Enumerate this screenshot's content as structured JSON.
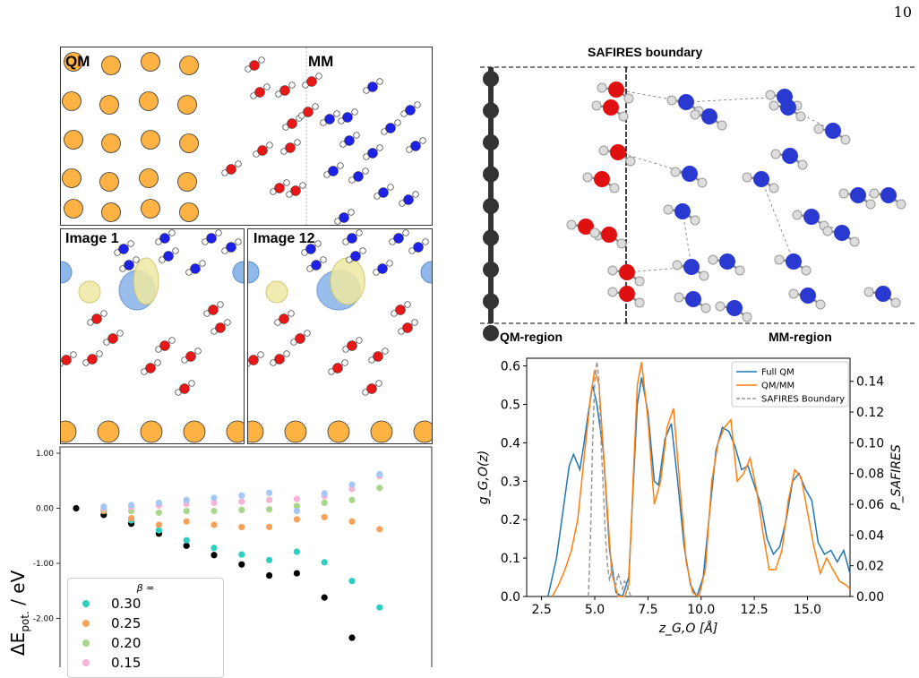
{
  "page_number": "10",
  "fig_a": {
    "label_qm": "QM",
    "label_mm": "MM"
  },
  "fig_b": {
    "image_a": "Image 1",
    "image_b": "Image 12"
  },
  "fig_c": {
    "ylabel": "ΔE",
    "ylabel_sub": "pot.",
    "ylabel_unit": "/ eV",
    "legend_title": "β =",
    "legend": [
      {
        "label": "0.30",
        "color": "#2ecfc0"
      },
      {
        "label": "0.25",
        "color": "#f7a25a"
      },
      {
        "label": "0.20",
        "color": "#a9d68a"
      },
      {
        "label": "0.15",
        "color": "#f5b3d6"
      }
    ]
  },
  "fig_d": {
    "title": "SAFIRES boundary",
    "left_label": "QM-region",
    "right_label": "MM-region"
  },
  "chart_data": [
    {
      "type": "scatter",
      "title": "",
      "xlabel": "",
      "ylabel": "ΔE_pot. / eV",
      "ylim": [
        -2.6,
        1.0
      ],
      "yticks": [
        1.0,
        0.0,
        -1.0,
        -2.0
      ],
      "ytick_labels": [
        "1.00",
        "0.00",
        "-1.00",
        "-2.00"
      ],
      "x": [
        1,
        2,
        3,
        4,
        5,
        6,
        7,
        8,
        9,
        10,
        11,
        12,
        13
      ],
      "series": [
        {
          "name": "",
          "color": "#000000",
          "values": [
            0.0,
            -0.12,
            -0.28,
            -0.46,
            -0.68,
            -0.85,
            -1.02,
            -1.22,
            -1.18,
            -1.62,
            -2.35,
            null,
            null
          ]
        },
        {
          "name": "0.30",
          "color": "#2ecfc0",
          "values": [
            null,
            -0.04,
            -0.22,
            -0.4,
            -0.58,
            -0.72,
            -0.84,
            -0.94,
            -0.79,
            -0.98,
            -1.32,
            -1.8,
            null
          ]
        },
        {
          "name": "0.25",
          "color": "#f7a25a",
          "values": [
            null,
            -0.05,
            -0.18,
            -0.3,
            -0.24,
            -0.3,
            -0.34,
            -0.34,
            -0.2,
            -0.16,
            -0.24,
            -0.38,
            null
          ]
        },
        {
          "name": "0.20",
          "color": "#a9d68a",
          "values": [
            null,
            -0.02,
            -0.05,
            -0.08,
            -0.05,
            -0.05,
            -0.03,
            -0.02,
            0.04,
            0.1,
            0.15,
            0.37,
            null
          ]
        },
        {
          "name": "0.15",
          "color": "#f5b3d6",
          "values": [
            null,
            0.0,
            0.02,
            0.05,
            0.08,
            0.1,
            0.12,
            0.15,
            0.17,
            0.22,
            0.35,
            0.58,
            null
          ]
        },
        {
          "name": "",
          "color": "#a4c8f5",
          "values": [
            null,
            0.03,
            0.06,
            0.1,
            0.15,
            0.19,
            0.23,
            0.28,
            -0.05,
            0.27,
            0.43,
            0.62,
            null
          ]
        }
      ]
    },
    {
      "type": "line",
      "title": "",
      "xlabel": "z_G,O [Å]",
      "ylabel": "g_G,O(z)",
      "y2label": "P_SAFIRES",
      "xlim": [
        1.8,
        17.0
      ],
      "ylim": [
        0.0,
        0.62
      ],
      "y2lim": [
        0.0,
        0.155
      ],
      "xticks": [
        2.5,
        5.0,
        7.5,
        10.0,
        12.5,
        15.0
      ],
      "xtick_labels": [
        "2.5",
        "5.0",
        "7.5",
        "10.0",
        "12.5",
        "15.0"
      ],
      "yticks": [
        0.0,
        0.1,
        0.2,
        0.3,
        0.4,
        0.5,
        0.6
      ],
      "ytick_labels": [
        "0.0",
        "0.1",
        "0.2",
        "0.3",
        "0.4",
        "0.5",
        "0.6"
      ],
      "y2ticks": [
        0.0,
        0.02,
        0.04,
        0.06,
        0.08,
        0.1,
        0.12,
        0.14
      ],
      "y2tick_labels": [
        "0.00",
        "0.02",
        "0.04",
        "0.06",
        "0.08",
        "0.10",
        "0.12",
        "0.14"
      ],
      "legend_position": "top-right",
      "series": [
        {
          "name": "Full QM",
          "color": "#1f77b4",
          "axis": "left",
          "x": [
            2.8,
            3.2,
            3.5,
            3.8,
            4.0,
            4.3,
            4.5,
            4.7,
            4.9,
            5.1,
            5.4,
            5.7,
            6.0,
            6.3,
            6.6,
            6.8,
            7.0,
            7.2,
            7.5,
            7.8,
            8.0,
            8.3,
            8.6,
            8.9,
            9.2,
            9.5,
            9.8,
            10.1,
            10.4,
            10.7,
            11.0,
            11.3,
            11.6,
            11.9,
            12.2,
            12.5,
            12.8,
            13.1,
            13.4,
            13.7,
            14.0,
            14.3,
            14.6,
            14.9,
            15.2,
            15.5,
            15.8,
            16.1,
            16.4,
            16.7,
            17.0
          ],
          "y": [
            0.0,
            0.1,
            0.22,
            0.34,
            0.37,
            0.33,
            0.4,
            0.48,
            0.55,
            0.5,
            0.38,
            0.12,
            0.01,
            0.0,
            0.05,
            0.28,
            0.5,
            0.57,
            0.48,
            0.3,
            0.29,
            0.41,
            0.45,
            0.3,
            0.13,
            0.03,
            0.0,
            0.05,
            0.22,
            0.38,
            0.44,
            0.43,
            0.39,
            0.33,
            0.34,
            0.29,
            0.24,
            0.15,
            0.11,
            0.13,
            0.2,
            0.3,
            0.32,
            0.28,
            0.25,
            0.14,
            0.11,
            0.12,
            0.09,
            0.12,
            0.06
          ]
        },
        {
          "name": "QM/MM",
          "color": "#ff7f0e",
          "axis": "left",
          "x": [
            3.0,
            3.3,
            3.6,
            3.9,
            4.2,
            4.5,
            4.8,
            5.0,
            5.2,
            5.5,
            5.8,
            6.1,
            6.4,
            6.6,
            6.8,
            7.0,
            7.2,
            7.5,
            7.8,
            8.1,
            8.4,
            8.7,
            9.0,
            9.3,
            9.6,
            9.9,
            10.2,
            10.5,
            10.8,
            11.1,
            11.4,
            11.7,
            12.0,
            12.3,
            12.6,
            12.9,
            13.2,
            13.5,
            13.8,
            14.1,
            14.4,
            14.7,
            15.0,
            15.3,
            15.6,
            15.9,
            16.2,
            16.5,
            16.8,
            17.0
          ],
          "y": [
            0.0,
            0.03,
            0.07,
            0.12,
            0.2,
            0.36,
            0.52,
            0.59,
            0.55,
            0.3,
            0.06,
            0.0,
            0.0,
            0.03,
            0.3,
            0.55,
            0.61,
            0.46,
            0.24,
            0.3,
            0.44,
            0.49,
            0.29,
            0.09,
            0.01,
            0.0,
            0.07,
            0.3,
            0.4,
            0.44,
            0.46,
            0.3,
            0.32,
            0.36,
            0.28,
            0.17,
            0.07,
            0.07,
            0.12,
            0.25,
            0.33,
            0.31,
            0.22,
            0.13,
            0.06,
            0.1,
            0.07,
            0.04,
            0.03,
            0.02
          ]
        },
        {
          "name": "SAFIRES Boundary",
          "color": "#999999",
          "axis": "right",
          "dashed": true,
          "x": [
            4.7,
            4.8,
            4.9,
            5.0,
            5.1,
            5.2,
            5.3,
            5.4,
            5.5,
            5.6,
            5.7,
            5.8,
            5.9,
            6.0,
            6.1,
            6.2,
            6.3,
            6.4,
            6.5,
            6.6,
            6.7
          ],
          "y": [
            0.0,
            0.04,
            0.1,
            0.14,
            0.153,
            0.14,
            0.1,
            0.07,
            0.04,
            0.02,
            0.01,
            0.02,
            0.01,
            0.008,
            0.015,
            0.01,
            0.005,
            0.01,
            0.008,
            0.004,
            0.0
          ]
        }
      ]
    }
  ]
}
